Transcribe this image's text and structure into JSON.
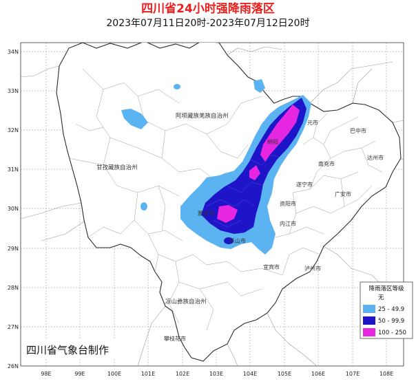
{
  "title": "四川省24小时强降雨落区",
  "subtitle": "2023年07月11日20时-2023年07月12日20时",
  "credit": "四川省气象台制作",
  "axes": {
    "x_ticks": [
      "98E",
      "99E",
      "100E",
      "101E",
      "102E",
      "103E",
      "104E",
      "105E",
      "106E",
      "107E",
      "108E"
    ],
    "y_ticks": [
      "34N",
      "33N",
      "32N",
      "31N",
      "30N",
      "29N",
      "28N",
      "27N",
      "26N"
    ]
  },
  "regions": {
    "aba": "阿坝藏族羌族自治州",
    "ganzi": "甘孜藏族自治州",
    "liangshan": "凉山彝族自治州"
  },
  "cities": {
    "panzhihua": "攀枝花市",
    "yaan": "雅安市",
    "leshan": "乐山市",
    "yibin": "宜宾市",
    "luzhou": "泸州市",
    "neijiang": "内江市",
    "ziyang": "资阳市",
    "suining": "遂宁市",
    "nanchong": "南充市",
    "guangan": "广安市",
    "bazhong": "巴中市",
    "dazhou": "达州市",
    "guangyuan": "元市",
    "mianyang": "绵阳"
  },
  "legend": {
    "title": "降雨落区等级",
    "items": [
      {
        "label": "无",
        "color": "#ffffff"
      },
      {
        "label": "25 - 49.9",
        "color": "#5cb3f2"
      },
      {
        "label": "50 - 99.9",
        "color": "#1e14c8"
      },
      {
        "label": "100 - 250",
        "color": "#e626e0"
      }
    ]
  }
}
